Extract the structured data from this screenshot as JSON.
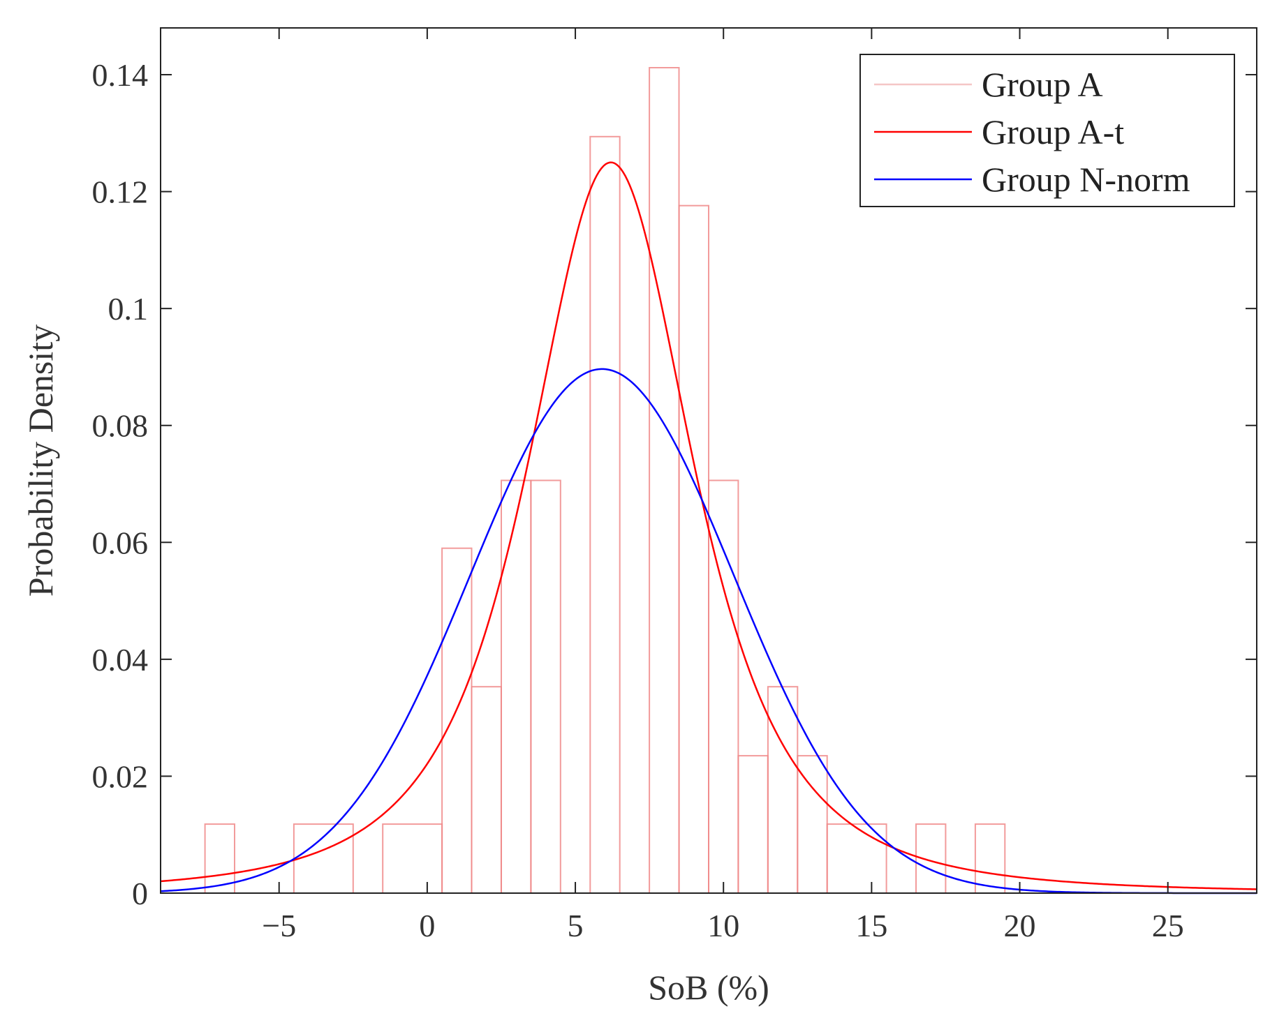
{
  "chart_data": {
    "type": "histogram-with-density-fits",
    "xlabel": "SoB (%)",
    "ylabel": "Probability Density",
    "xlim": [
      -9,
      28
    ],
    "ylim": [
      0,
      0.148
    ],
    "xticks": [
      -5,
      0,
      5,
      10,
      15,
      20,
      25
    ],
    "xtick_labels": [
      "−5",
      "0",
      "5",
      "10",
      "15",
      "20",
      "25"
    ],
    "yticks": [
      0,
      0.02,
      0.04,
      0.06,
      0.08,
      0.1,
      0.12,
      0.14
    ],
    "ytick_labels": [
      "0",
      "0.02",
      "0.04",
      "0.06",
      "0.08",
      "0.1",
      "0.12",
      "0.14"
    ],
    "grid": false,
    "legend_position": "top-right",
    "legend": [
      {
        "label": "Group A",
        "color": "#f5c6c6"
      },
      {
        "label": "Group A-t",
        "color": "#ff0000"
      },
      {
        "label": "Group N-norm",
        "color": "#0000ff"
      }
    ],
    "histogram": {
      "name": "Group A",
      "color": "#f08a8a",
      "bins": [
        {
          "x0": -7.5,
          "x1": -6.5,
          "density": 0.0118
        },
        {
          "x0": -6.5,
          "x1": -4.5,
          "density": 0.0
        },
        {
          "x0": -4.5,
          "x1": -2.5,
          "density": 0.0118
        },
        {
          "x0": -2.5,
          "x1": -1.5,
          "density": 0.0
        },
        {
          "x0": -1.5,
          "x1": 0.5,
          "density": 0.0118
        },
        {
          "x0": 0.5,
          "x1": 1.5,
          "density": 0.059
        },
        {
          "x0": 1.5,
          "x1": 2.5,
          "density": 0.0353
        },
        {
          "x0": 2.5,
          "x1": 3.5,
          "density": 0.0706
        },
        {
          "x0": 3.5,
          "x1": 4.5,
          "density": 0.0706
        },
        {
          "x0": 4.5,
          "x1": 5.5,
          "density": 0.0
        },
        {
          "x0": 5.5,
          "x1": 6.5,
          "density": 0.1294
        },
        {
          "x0": 6.5,
          "x1": 7.5,
          "density": 0.0
        },
        {
          "x0": 7.5,
          "x1": 8.5,
          "density": 0.1412
        },
        {
          "x0": 8.5,
          "x1": 9.5,
          "density": 0.1176
        },
        {
          "x0": 9.5,
          "x1": 10.5,
          "density": 0.0706
        },
        {
          "x0": 10.5,
          "x1": 11.5,
          "density": 0.0235
        },
        {
          "x0": 11.5,
          "x1": 12.5,
          "density": 0.0353
        },
        {
          "x0": 12.5,
          "x1": 13.5,
          "density": 0.0235
        },
        {
          "x0": 13.5,
          "x1": 15.5,
          "density": 0.0118
        },
        {
          "x0": 15.5,
          "x1": 16.5,
          "density": 0.0
        },
        {
          "x0": 16.5,
          "x1": 17.5,
          "density": 0.0118
        },
        {
          "x0": 17.5,
          "x1": 18.5,
          "density": 0.0
        },
        {
          "x0": 18.5,
          "x1": 19.5,
          "density": 0.0118
        }
      ]
    },
    "series": [
      {
        "name": "Group A-t",
        "color": "#ff0000",
        "distribution": "t location-scale",
        "mu": 6.2,
        "sigma": 3.0,
        "nu": 2.3,
        "peak_density": 0.125
      },
      {
        "name": "Group N-norm",
        "color": "#0000ff",
        "distribution": "normal",
        "mu": 5.9,
        "sigma": 4.45,
        "peak_density": 0.0897
      }
    ]
  }
}
